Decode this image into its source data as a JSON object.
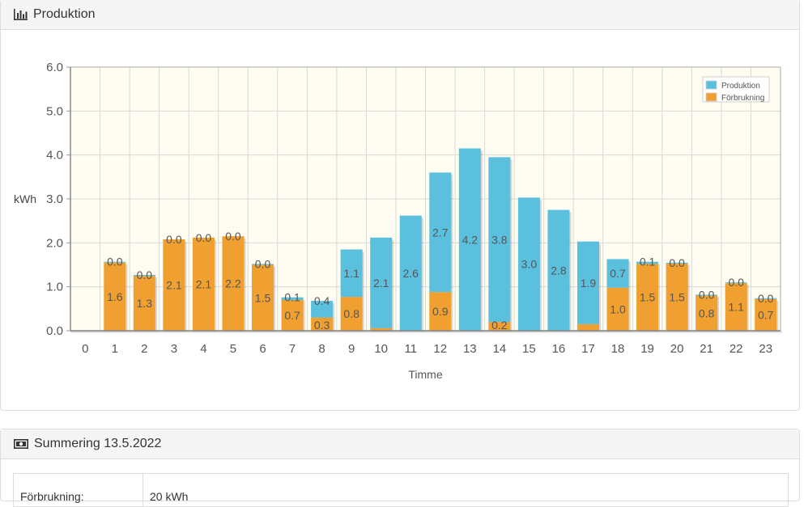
{
  "production_panel": {
    "title": "Produktion",
    "icon": "bar-chart-icon"
  },
  "summary_panel": {
    "title": "Summering 13.5.2022",
    "icon": "money-icon",
    "rows": [
      {
        "label": "Förbrukning:",
        "value": "20 kWh"
      }
    ]
  },
  "chart_data": {
    "type": "bar",
    "stacked": true,
    "xlabel": "Timme",
    "ylabel": "kWh",
    "ylim": [
      0,
      6
    ],
    "yticks": [
      "0.0",
      "1.0",
      "2.0",
      "3.0",
      "4.0",
      "5.0",
      "6.0"
    ],
    "categories": [
      "0",
      "1",
      "2",
      "3",
      "4",
      "5",
      "6",
      "7",
      "8",
      "9",
      "10",
      "11",
      "12",
      "13",
      "14",
      "15",
      "16",
      "17",
      "18",
      "19",
      "20",
      "21",
      "22",
      "23"
    ],
    "grid": true,
    "legend_position": "top-right",
    "series": [
      {
        "name": "Förbrukning",
        "color": "#f0a030",
        "values": [
          0,
          1.55,
          1.25,
          2.08,
          2.12,
          2.15,
          1.5,
          0.7,
          0.3,
          0.77,
          0.06,
          0,
          0.88,
          0,
          0.2,
          0,
          0,
          0.15,
          0.98,
          1.52,
          1.53,
          0.8,
          1.08,
          0.72
        ],
        "labels": [
          "",
          "1.6",
          "1.3",
          "2.1",
          "2.1",
          "2.2",
          "1.5",
          "0.7",
          "0.3",
          "0.8",
          "",
          "",
          "0.9",
          "",
          "0.2",
          "",
          "",
          "",
          "1.0",
          "1.5",
          "1.5",
          "0.8",
          "1.1",
          "0.7"
        ]
      },
      {
        "name": "Produktion",
        "color": "#5bc0de",
        "values": [
          0,
          0.02,
          0.02,
          0,
          0,
          0,
          0.02,
          0.06,
          0.38,
          1.08,
          2.06,
          2.62,
          2.72,
          4.15,
          3.75,
          3.03,
          2.75,
          1.88,
          0.65,
          0.05,
          0.02,
          0.02,
          0.02,
          0.02
        ],
        "labels": [
          "",
          "0.0",
          "0.0",
          "0.0",
          "0.0",
          "0.0",
          "0.0",
          "0.1",
          "0.4",
          "1.1",
          "2.1",
          "2.6",
          "2.7",
          "4.2",
          "3.8",
          "3.0",
          "2.8",
          "1.9",
          "0.7",
          "0.1",
          "0.0",
          "0.0",
          "0.0",
          "0.0"
        ]
      }
    ]
  }
}
